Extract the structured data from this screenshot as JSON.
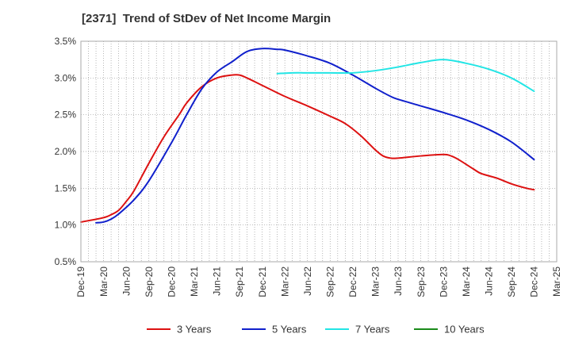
{
  "chart_data": {
    "type": "line",
    "title": "[2371]  Trend of StDev of Net Income Margin",
    "xlabel": "",
    "ylabel": "",
    "x_ticks": [
      "Dec-19",
      "Mar-20",
      "Jun-20",
      "Sep-20",
      "Dec-20",
      "Mar-21",
      "Jun-21",
      "Sep-21",
      "Dec-21",
      "Mar-22",
      "Jun-22",
      "Sep-22",
      "Dec-22",
      "Mar-23",
      "Jun-23",
      "Sep-23",
      "Dec-23",
      "Mar-24",
      "Jun-24",
      "Sep-24",
      "Dec-24",
      "Mar-25"
    ],
    "y_ticks": [
      "0.5%",
      "1.0%",
      "1.5%",
      "2.0%",
      "2.5%",
      "3.0%",
      "3.5%"
    ],
    "ylim": [
      0.5,
      3.5
    ],
    "y_unit": "%",
    "grid": "dotted",
    "legend_position": "bottom",
    "series": [
      {
        "name": "3 Years",
        "color": "#dd1111",
        "points": [
          {
            "x": "Dec-19",
            "y": 1.04
          },
          {
            "x": "Mar-20",
            "y": 1.1
          },
          {
            "x": "Apr-20",
            "y": 1.14
          },
          {
            "x": "May-20",
            "y": 1.2
          },
          {
            "x": "Jun-20",
            "y": 1.32
          },
          {
            "x": "Jul-20",
            "y": 1.46
          },
          {
            "x": "Sep-20",
            "y": 1.84
          },
          {
            "x": "Nov-20",
            "y": 2.2
          },
          {
            "x": "Jan-21",
            "y": 2.5
          },
          {
            "x": "Feb-21",
            "y": 2.66
          },
          {
            "x": "Apr-21",
            "y": 2.88
          },
          {
            "x": "Jun-21",
            "y": 3.0
          },
          {
            "x": "Aug-21",
            "y": 3.04
          },
          {
            "x": "Sep-21",
            "y": 3.04
          },
          {
            "x": "Oct-21",
            "y": 3.0
          },
          {
            "x": "Dec-21",
            "y": 2.9
          },
          {
            "x": "Mar-22",
            "y": 2.75
          },
          {
            "x": "Jun-22",
            "y": 2.62
          },
          {
            "x": "Sep-22",
            "y": 2.48
          },
          {
            "x": "Nov-22",
            "y": 2.38
          },
          {
            "x": "Jan-23",
            "y": 2.22
          },
          {
            "x": "Mar-23",
            "y": 2.02
          },
          {
            "x": "Apr-23",
            "y": 1.94
          },
          {
            "x": "May-23",
            "y": 1.91
          },
          {
            "x": "Jun-23",
            "y": 1.91
          },
          {
            "x": "Sep-23",
            "y": 1.94
          },
          {
            "x": "Dec-23",
            "y": 1.96
          },
          {
            "x": "Jan-24",
            "y": 1.94
          },
          {
            "x": "Feb-24",
            "y": 1.89
          },
          {
            "x": "Apr-24",
            "y": 1.76
          },
          {
            "x": "May-24",
            "y": 1.7
          },
          {
            "x": "Jul-24",
            "y": 1.64
          },
          {
            "x": "Sep-24",
            "y": 1.56
          },
          {
            "x": "Nov-24",
            "y": 1.5
          },
          {
            "x": "Dec-24",
            "y": 1.48
          }
        ]
      },
      {
        "name": "5 Years",
        "color": "#1020cc",
        "points": [
          {
            "x": "Feb-20",
            "y": 1.03
          },
          {
            "x": "Mar-20",
            "y": 1.04
          },
          {
            "x": "Apr-20",
            "y": 1.08
          },
          {
            "x": "May-20",
            "y": 1.15
          },
          {
            "x": "Jul-20",
            "y": 1.34
          },
          {
            "x": "Sep-20",
            "y": 1.6
          },
          {
            "x": "Dec-20",
            "y": 2.12
          },
          {
            "x": "Feb-21",
            "y": 2.5
          },
          {
            "x": "Apr-21",
            "y": 2.85
          },
          {
            "x": "Jun-21",
            "y": 3.08
          },
          {
            "x": "Aug-21",
            "y": 3.22
          },
          {
            "x": "Oct-21",
            "y": 3.36
          },
          {
            "x": "Dec-21",
            "y": 3.4
          },
          {
            "x": "Feb-22",
            "y": 3.39
          },
          {
            "x": "Mar-22",
            "y": 3.38
          },
          {
            "x": "Jun-22",
            "y": 3.3
          },
          {
            "x": "Sep-22",
            "y": 3.2
          },
          {
            "x": "Dec-22",
            "y": 3.04
          },
          {
            "x": "Mar-23",
            "y": 2.86
          },
          {
            "x": "May-23",
            "y": 2.75
          },
          {
            "x": "Jun-23",
            "y": 2.71
          },
          {
            "x": "Sep-23",
            "y": 2.62
          },
          {
            "x": "Dec-23",
            "y": 2.53
          },
          {
            "x": "Mar-24",
            "y": 2.43
          },
          {
            "x": "Jun-24",
            "y": 2.3
          },
          {
            "x": "Sep-24",
            "y": 2.13
          },
          {
            "x": "Dec-24",
            "y": 1.89
          }
        ]
      },
      {
        "name": "7 Years",
        "color": "#22e5e5",
        "points": [
          {
            "x": "Feb-22",
            "y": 3.06
          },
          {
            "x": "Apr-22",
            "y": 3.07
          },
          {
            "x": "Jun-22",
            "y": 3.07
          },
          {
            "x": "Sep-22",
            "y": 3.07
          },
          {
            "x": "Dec-22",
            "y": 3.07
          },
          {
            "x": "Mar-23",
            "y": 3.1
          },
          {
            "x": "Jun-23",
            "y": 3.15
          },
          {
            "x": "Sep-23",
            "y": 3.21
          },
          {
            "x": "Dec-23",
            "y": 3.25
          },
          {
            "x": "Mar-24",
            "y": 3.2
          },
          {
            "x": "Jun-24",
            "y": 3.12
          },
          {
            "x": "Sep-24",
            "y": 3.0
          },
          {
            "x": "Dec-24",
            "y": 2.82
          }
        ]
      },
      {
        "name": "10 Years",
        "color": "#1a8a1a",
        "points": []
      }
    ]
  }
}
